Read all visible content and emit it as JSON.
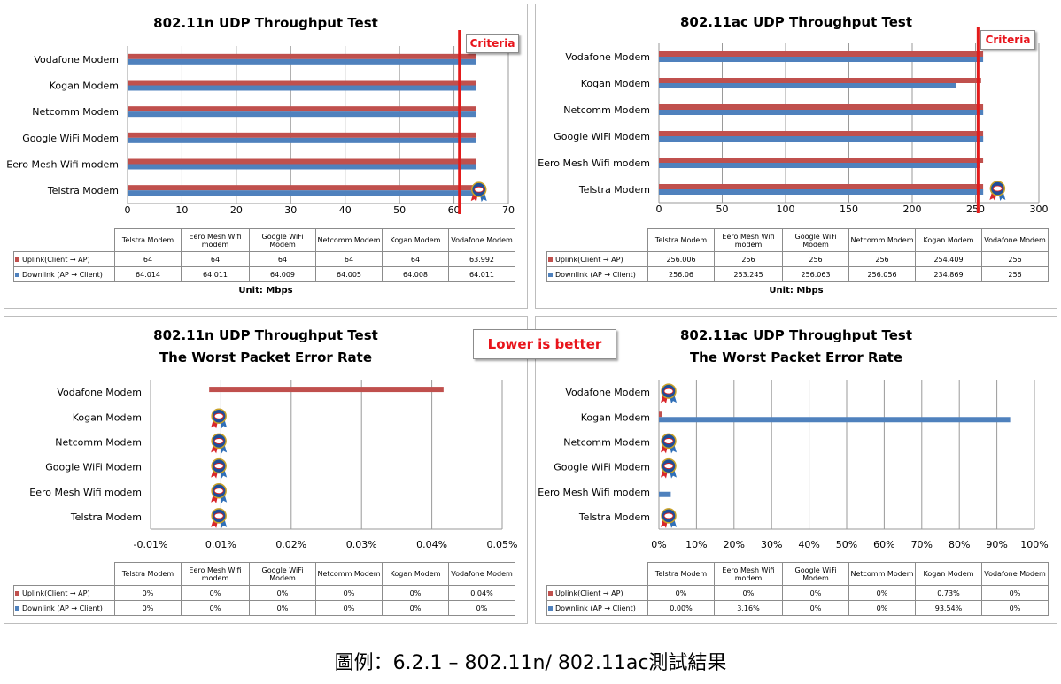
{
  "caption": "圖例：6.2.1 – 802.11n/ 802.11ac測試結果",
  "colors": {
    "uplink": "#c0504d",
    "downlink": "#4f81bd",
    "criteria": "#e31b1b",
    "callout_text": "#e8141b"
  },
  "row_labels": {
    "uplink": "Uplink(Client → AP)",
    "downlink": "Downlink (AP → Client)"
  },
  "table_headers": [
    "Telstra Modem",
    "Eero Mesh Wifi modem",
    "Google WiFi Modem",
    "Netcomm Modem",
    "Kogan Modem",
    "Vodafone Modem"
  ],
  "unit_label": "Unit: Mbps",
  "criteria_label": "Criteria",
  "lower_better_label": "Lower is better",
  "badge_icon": "award-ribbon-medal-icon",
  "chart_data": [
    {
      "type": "bar",
      "orientation": "horizontal",
      "title": "802.11n UDP Throughput Test",
      "categories": [
        "Vodafone Modem",
        "Kogan Modem",
        "Netcomm Modem",
        "Google WiFi Modem",
        "Eero Mesh Wifi modem",
        "Telstra Modem"
      ],
      "series": [
        {
          "name": "Uplink(Client → AP)",
          "values": [
            63.992,
            64,
            64,
            64,
            64,
            64
          ]
        },
        {
          "name": "Downlink (AP → Client)",
          "values": [
            64.011,
            64.008,
            64.005,
            64.009,
            64.011,
            64.014
          ]
        }
      ],
      "xlim": [
        0,
        70
      ],
      "xticks": [
        "0",
        "10",
        "20",
        "30",
        "40",
        "50",
        "60",
        "70"
      ],
      "criteria": 61,
      "badges": [
        "Telstra Modem"
      ],
      "table": {
        "uplink": [
          "64",
          "64",
          "64",
          "64",
          "64",
          "63.992"
        ],
        "downlink": [
          "64.014",
          "64.011",
          "64.009",
          "64.005",
          "64.008",
          "64.011"
        ]
      },
      "unit": "Unit: Mbps",
      "grid": true
    },
    {
      "type": "bar",
      "orientation": "horizontal",
      "title": "802.11ac UDP Throughput Test",
      "categories": [
        "Vodafone Modem",
        "Kogan Modem",
        "Netcomm Modem",
        "Google WiFi Modem",
        "Eero Mesh Wifi modem",
        "Telstra Modem"
      ],
      "series": [
        {
          "name": "Uplink(Client → AP)",
          "values": [
            256,
            254.409,
            256,
            256,
            256,
            256.006
          ]
        },
        {
          "name": "Downlink (AP → Client)",
          "values": [
            256,
            234.869,
            256.056,
            256.063,
            253.245,
            256.06
          ]
        }
      ],
      "xlim": [
        0,
        300
      ],
      "xticks": [
        "0",
        "50",
        "100",
        "150",
        "200",
        "250",
        "300"
      ],
      "criteria": 252,
      "badges": [
        "Telstra Modem"
      ],
      "table": {
        "uplink": [
          "256.006",
          "256",
          "256",
          "256",
          "254.409",
          "256"
        ],
        "downlink": [
          "256.06",
          "253.245",
          "256.063",
          "256.056",
          "234.869",
          "256"
        ]
      },
      "unit": "Unit: Mbps",
      "grid": true
    },
    {
      "type": "bar",
      "orientation": "horizontal",
      "title": "802.11n UDP Throughput Test",
      "subtitle": "The Worst Packet Error Rate",
      "categories": [
        "Vodafone Modem",
        "Kogan Modem",
        "Netcomm Modem",
        "Google WiFi Modem",
        "Eero Mesh Wifi modem",
        "Telstra Modem"
      ],
      "series": [
        {
          "name": "Uplink(Client → AP)",
          "values": [
            0.04,
            0,
            0,
            0,
            0,
            0
          ]
        },
        {
          "name": "Downlink (AP → Client)",
          "values": [
            0,
            0,
            0,
            0,
            0,
            0
          ]
        }
      ],
      "xlim": [
        -0.01,
        0.05
      ],
      "xticks": [
        "-0.01%",
        "0.01%",
        "0.02%",
        "0.03%",
        "0.04%",
        "0.05%"
      ],
      "badges": [
        "Kogan Modem",
        "Netcomm Modem",
        "Google WiFi Modem",
        "Eero Mesh Wifi modem",
        "Telstra Modem"
      ],
      "table": {
        "uplink": [
          "0%",
          "0%",
          "0%",
          "0%",
          "0%",
          "0.04%"
        ],
        "downlink": [
          "0%",
          "0%",
          "0%",
          "0%",
          "0%",
          "0%"
        ]
      },
      "grid": true
    },
    {
      "type": "bar",
      "orientation": "horizontal",
      "title": "802.11ac UDP Throughput Test",
      "subtitle": "The Worst Packet Error Rate",
      "categories": [
        "Vodafone Modem",
        "Kogan Modem",
        "Netcomm Modem",
        "Google WiFi Modem",
        "Eero Mesh Wifi modem",
        "Telstra Modem"
      ],
      "series": [
        {
          "name": "Uplink(Client → AP)",
          "values": [
            0,
            0.73,
            0,
            0,
            0,
            0
          ]
        },
        {
          "name": "Downlink (AP → Client)",
          "values": [
            0,
            93.54,
            0,
            0,
            3.16,
            0
          ]
        }
      ],
      "xlim": [
        0,
        100
      ],
      "xticks": [
        "0%",
        "10%",
        "20%",
        "30%",
        "40%",
        "50%",
        "60%",
        "70%",
        "80%",
        "90%",
        "100%"
      ],
      "badges": [
        "Vodafone Modem",
        "Netcomm Modem",
        "Google WiFi Modem",
        "Telstra Modem"
      ],
      "table": {
        "uplink": [
          "0%",
          "0%",
          "0%",
          "0%",
          "0.73%",
          "0%"
        ],
        "downlink": [
          "0.00%",
          "3.16%",
          "0%",
          "0%",
          "93.54%",
          "0%"
        ]
      },
      "grid": true
    }
  ]
}
